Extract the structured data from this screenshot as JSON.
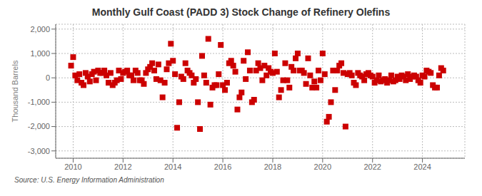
{
  "chart_data": {
    "type": "scatter",
    "title": "Monthly Gulf Coast (PADD 3) Stock Change of Refinery Olefins",
    "ylabel": "Thousand Barrels",
    "annotations": [
      "Source: U.S. Energy Information Administration"
    ],
    "color": "#CC0000",
    "marker": "square",
    "grid": true,
    "xlim": [
      2009.3,
      2025.7
    ],
    "xticks": [
      2010,
      2012,
      2014,
      2016,
      2018,
      2020,
      2022,
      2024
    ],
    "ylim": [
      -3300,
      2200
    ],
    "yticks": [
      {
        "value": -3000,
        "label": "-3,000"
      },
      {
        "value": -2000,
        "label": "-2,000"
      },
      {
        "value": -1000,
        "label": "-1,000"
      },
      0,
      {
        "value": 1000,
        "label": "1,000"
      },
      {
        "value": 2000,
        "label": "2,000"
      }
    ],
    "x": [
      2009.917,
      2010.0,
      2010.083,
      2010.167,
      2010.25,
      2010.333,
      2010.417,
      2010.5,
      2010.583,
      2010.667,
      2010.75,
      2010.833,
      2010.917,
      2011.0,
      2011.083,
      2011.167,
      2011.25,
      2011.333,
      2011.417,
      2011.5,
      2011.583,
      2011.667,
      2011.75,
      2011.833,
      2011.917,
      2012.0,
      2012.083,
      2012.167,
      2012.25,
      2012.333,
      2012.417,
      2012.5,
      2012.583,
      2012.667,
      2012.75,
      2012.833,
      2012.917,
      2013.0,
      2013.083,
      2013.167,
      2013.25,
      2013.333,
      2013.417,
      2013.5,
      2013.583,
      2013.667,
      2013.75,
      2013.833,
      2013.917,
      2014.0,
      2014.083,
      2014.167,
      2014.25,
      2014.333,
      2014.417,
      2014.5,
      2014.583,
      2014.667,
      2014.75,
      2014.833,
      2014.917,
      2015.0,
      2015.083,
      2015.167,
      2015.25,
      2015.333,
      2015.417,
      2015.5,
      2015.583,
      2015.667,
      2015.75,
      2015.833,
      2015.917,
      2016.0,
      2016.083,
      2016.167,
      2016.25,
      2016.333,
      2016.417,
      2016.5,
      2016.583,
      2016.667,
      2016.75,
      2016.833,
      2016.917,
      2017.0,
      2017.083,
      2017.167,
      2017.25,
      2017.333,
      2017.417,
      2017.5,
      2017.583,
      2017.667,
      2017.75,
      2017.833,
      2017.917,
      2018.0,
      2018.083,
      2018.167,
      2018.25,
      2018.333,
      2018.417,
      2018.5,
      2018.583,
      2018.667,
      2018.75,
      2018.833,
      2018.917,
      2019.0,
      2019.083,
      2019.167,
      2019.25,
      2019.333,
      2019.417,
      2019.5,
      2019.583,
      2019.667,
      2019.75,
      2019.833,
      2019.917,
      2020.0,
      2020.083,
      2020.167,
      2020.25,
      2020.333,
      2020.417,
      2020.5,
      2020.583,
      2020.667,
      2020.75,
      2020.833,
      2020.917,
      2021.0,
      2021.083,
      2021.167,
      2021.25,
      2021.333,
      2021.417,
      2021.5,
      2021.583,
      2021.667,
      2021.75,
      2021.833,
      2021.917,
      2022.0,
      2022.083,
      2022.167,
      2022.25,
      2022.333,
      2022.417,
      2022.5,
      2022.583,
      2022.667,
      2022.75,
      2022.833,
      2022.917,
      2023.0,
      2023.083,
      2023.167,
      2023.25,
      2023.333,
      2023.417,
      2023.5,
      2023.583,
      2023.667,
      2023.75,
      2023.833,
      2023.917,
      2024.0,
      2024.083,
      2024.167,
      2024.25,
      2024.333,
      2024.417,
      2024.5,
      2024.583,
      2024.667,
      2024.75,
      2024.833
    ],
    "values": [
      500,
      850,
      100,
      -100,
      150,
      -200,
      -300,
      200,
      50,
      -150,
      150,
      250,
      -100,
      300,
      200,
      200,
      300,
      100,
      -200,
      200,
      -300,
      -200,
      -100,
      300,
      -50,
      200,
      250,
      300,
      100,
      100,
      -100,
      300,
      200,
      -100,
      -100,
      -250,
      200,
      350,
      450,
      600,
      300,
      -50,
      550,
      -100,
      -800,
      -200,
      350,
      600,
      1400,
      700,
      150,
      -2050,
      -1000,
      50,
      -50,
      600,
      300,
      200,
      100,
      -200,
      -50,
      -1000,
      -2100,
      900,
      100,
      -200,
      1600,
      -1100,
      -400,
      -300,
      -300,
      150,
      1350,
      -300,
      -500,
      -200,
      600,
      700,
      500,
      250,
      -1300,
      -800,
      -600,
      700,
      -50,
      1050,
      300,
      -1000,
      -900,
      300,
      600,
      400,
      -100,
      500,
      100,
      400,
      250,
      200,
      1000,
      250,
      -800,
      -500,
      -100,
      600,
      -100,
      -400,
      450,
      300,
      800,
      1000,
      300,
      300,
      200,
      -250,
      800,
      100,
      -400,
      -150,
      -400,
      300,
      -100,
      1000,
      150,
      -1800,
      -1600,
      -1000,
      300,
      -500,
      300,
      500,
      600,
      200,
      -2000,
      150,
      200,
      100,
      -200,
      -300,
      200,
      100,
      50,
      -100,
      150,
      200,
      100,
      50,
      -200,
      -100,
      100,
      -150,
      -100,
      -50,
      -200,
      -100,
      100,
      -150,
      -100,
      50,
      -50,
      100,
      50,
      -100,
      150,
      -50,
      50,
      100,
      50,
      -100,
      -200,
      100,
      50,
      300,
      250,
      200,
      -300,
      -400,
      -400,
      100,
      400,
      300
    ]
  }
}
